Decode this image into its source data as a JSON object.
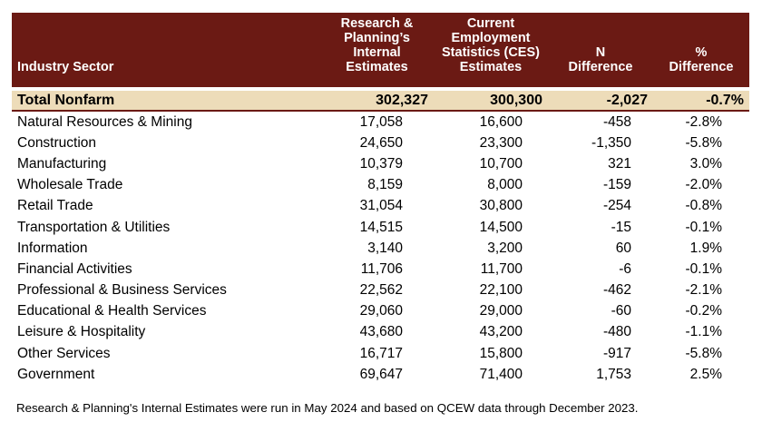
{
  "headers": {
    "sector": "Industry Sector",
    "internal": [
      "Research &",
      "Planning’s",
      "Internal Estimates"
    ],
    "ces": [
      "Current",
      "Employment",
      "Statistics (CES)",
      "Estimates"
    ],
    "n_diff": [
      "N",
      "Difference"
    ],
    "pct_diff": [
      "%",
      "Difference"
    ]
  },
  "total": {
    "sector": "Total Nonfarm",
    "internal": "302,327",
    "ces": "300,300",
    "n_diff": "-2,027",
    "pct_diff": "-0.7%"
  },
  "rows": [
    {
      "sector": "Natural Resources & Mining",
      "internal": "17,058",
      "ces": "16,600",
      "n_diff": "-458",
      "pct_diff": "-2.8%"
    },
    {
      "sector": "Construction",
      "internal": "24,650",
      "ces": "23,300",
      "n_diff": "-1,350",
      "pct_diff": "-5.8%"
    },
    {
      "sector": "Manufacturing",
      "internal": "10,379",
      "ces": "10,700",
      "n_diff": "321",
      "pct_diff": "3.0%"
    },
    {
      "sector": "Wholesale Trade",
      "internal": "8,159",
      "ces": "8,000",
      "n_diff": "-159",
      "pct_diff": "-2.0%"
    },
    {
      "sector": "Retail Trade",
      "internal": "31,054",
      "ces": "30,800",
      "n_diff": "-254",
      "pct_diff": "-0.8%"
    },
    {
      "sector": "Transportation & Utilities",
      "internal": "14,515",
      "ces": "14,500",
      "n_diff": "-15",
      "pct_diff": "-0.1%"
    },
    {
      "sector": "Information",
      "internal": "3,140",
      "ces": "3,200",
      "n_diff": "60",
      "pct_diff": "1.9%"
    },
    {
      "sector": "Financial Activities",
      "internal": "11,706",
      "ces": "11,700",
      "n_diff": "-6",
      "pct_diff": "-0.1%"
    },
    {
      "sector": "Professional & Business Services",
      "internal": "22,562",
      "ces": "22,100",
      "n_diff": "-462",
      "pct_diff": "-2.1%"
    },
    {
      "sector": "Educational & Health Services",
      "internal": "29,060",
      "ces": "29,000",
      "n_diff": "-60",
      "pct_diff": "-0.2%"
    },
    {
      "sector": "Leisure & Hospitality",
      "internal": "43,680",
      "ces": "43,200",
      "n_diff": "-480",
      "pct_diff": "-1.1%"
    },
    {
      "sector": "Other Services",
      "internal": "16,717",
      "ces": "15,800",
      "n_diff": "-917",
      "pct_diff": "-5.8%"
    },
    {
      "sector": "Government",
      "internal": "69,647",
      "ces": "71,400",
      "n_diff": "1,753",
      "pct_diff": "2.5%"
    }
  ],
  "footnote": "Research & Planning's Internal Estimates were run in May 2024 and based on QCEW data through December 2023.",
  "colors": {
    "header_bg": "#6b1a14",
    "total_bg": "#eddcb9"
  }
}
